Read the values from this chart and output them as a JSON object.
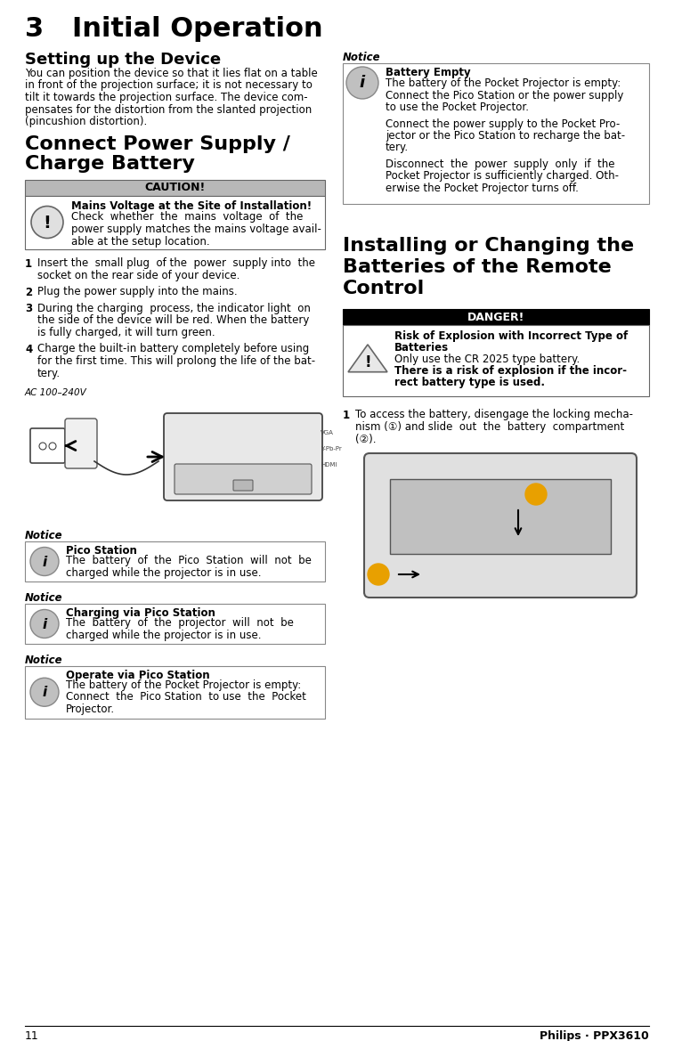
{
  "page_number": "11",
  "right_footer": "Philips · PPX3610",
  "chapter_title": "3   Initial Operation",
  "section1_title": "Setting up the Device",
  "section1_body_lines": [
    "You can position the device so that it lies flat on a table",
    "in front of the projection surface; it is not necessary to",
    "tilt it towards the projection surface. The device com-",
    "pensates for the distortion from the slanted projection",
    "(pincushion distortion)."
  ],
  "section2_title_line1": "Connect Power Supply /",
  "section2_title_line2": "Charge Battery",
  "caution_header": "CAUTION!",
  "caution_title": "Mains Voltage at the Site of Installation!",
  "caution_body_lines": [
    "Check  whether  the  mains  voltage  of  the",
    "power supply matches the mains voltage avail-",
    "able at the setup location."
  ],
  "steps": [
    {
      "num": "1",
      "lines": [
        "Insert the  small plug  of the  power  supply into  the",
        "socket on the rear side of your device."
      ]
    },
    {
      "num": "2",
      "lines": [
        "Plug the power supply into the mains."
      ]
    },
    {
      "num": "3",
      "lines": [
        "During the charging  process, the indicator light  on",
        "the side of the device will be red. When the battery",
        "is fully charged, it will turn green."
      ]
    },
    {
      "num": "4",
      "lines": [
        "Charge the built-in battery completely before using",
        "for the first time. This will prolong the life of the bat-",
        "tery."
      ]
    }
  ],
  "ac_label": "AC 100–240V",
  "notice_boxes_left": [
    {
      "title": "Pico Station",
      "lines": [
        "The  battery  of  the  Pico  Station  will  not  be",
        "charged while the projector is in use."
      ]
    },
    {
      "title": "Charging via Pico Station",
      "lines": [
        "The  battery  of  the  projector  will  not  be",
        "charged while the projector is in use."
      ]
    },
    {
      "title": "Operate via Pico Station",
      "lines": [
        "The battery of the Pocket Projector is empty:",
        "Connect  the  Pico Station  to use  the  Pocket",
        "Projector."
      ]
    }
  ],
  "notice_label": "Notice",
  "right_col_notice_title": "Battery Empty",
  "right_col_notice_body_paragraphs": [
    [
      "The battery of the Pocket Projector is empty:",
      "Connect the Pico Station or the power supply",
      "to use the Pocket Projector."
    ],
    [
      "Connect the power supply to the Pocket Pro-",
      "jector or the Pico Station to recharge the bat-",
      "tery."
    ],
    [
      "Disconnect  the  power  supply  only  if  the",
      "Pocket Projector is sufficiently charged. Oth-",
      "erwise the Pocket Projector turns off."
    ]
  ],
  "section3_title_lines": [
    "Installing or Changing the",
    "Batteries of the Remote",
    "Control"
  ],
  "danger_header": "DANGER!",
  "danger_title_lines": [
    "Risk of Explosion with Incorrect Type of",
    "Batteries"
  ],
  "danger_normal": "Only use the CR 2025 type battery.",
  "danger_bold_lines": [
    "There is a risk of explosion if the incor-",
    "rect battery type is used."
  ],
  "step_right_num": "1",
  "step_right_lines": [
    "To access the battery, disengage the locking mecha-",
    "nism (①) and slide  out  the  battery  compartment",
    "(②)."
  ],
  "bg_color": "#ffffff",
  "text_color": "#000000",
  "caution_header_bg": "#b8b8b8",
  "danger_header_bg": "#000000",
  "danger_header_text": "#ffffff",
  "box_border_color": "#888888",
  "notice_icon_bg": "#c0c0c0",
  "notice_icon_border": "#888888",
  "footer_line_color": "#000000",
  "lmargin": 28,
  "rmargin": 729,
  "col_split": 370,
  "body_fs": 8.5,
  "small_fs": 7.5
}
